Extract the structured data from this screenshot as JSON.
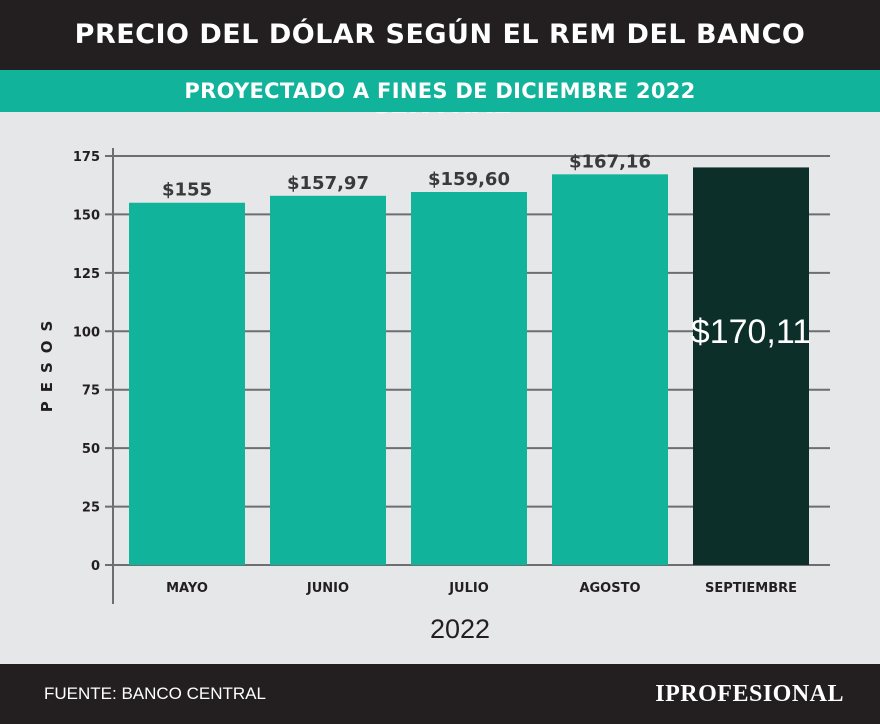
{
  "header": {
    "title": "PRECIO DEL DÓLAR SEGÚN EL REM DEL BANCO CENTRAL",
    "subtitle": "PROYECTADO A FINES DE DICIEMBRE 2022"
  },
  "footer": {
    "source": "FUENTE: BANCO CENTRAL",
    "logo": "IPROFESIONAL"
  },
  "colors": {
    "bar": "#12b39b",
    "bar_highlight": "#0d2f29",
    "header_bg": "#231f20",
    "subtitle_bg": "#12b39b",
    "plot_bg": "#e6e7e8"
  },
  "chart_data": {
    "type": "bar",
    "categories": [
      "MAYO",
      "JUNIO",
      "JULIO",
      "AGOSTO",
      "SEPTIEMBRE"
    ],
    "values": [
      155,
      157.97,
      159.6,
      167.16,
      170.11
    ],
    "value_labels": [
      "$155",
      "$157,97",
      "$159,60",
      "$167,16",
      "$170,11"
    ],
    "highlight_index": 4,
    "xlabel": "2022",
    "ylabel": "PESOS",
    "ylim": [
      0,
      175
    ],
    "yticks": [
      0,
      25,
      50,
      75,
      100,
      125,
      150,
      175
    ],
    "grid": true
  }
}
